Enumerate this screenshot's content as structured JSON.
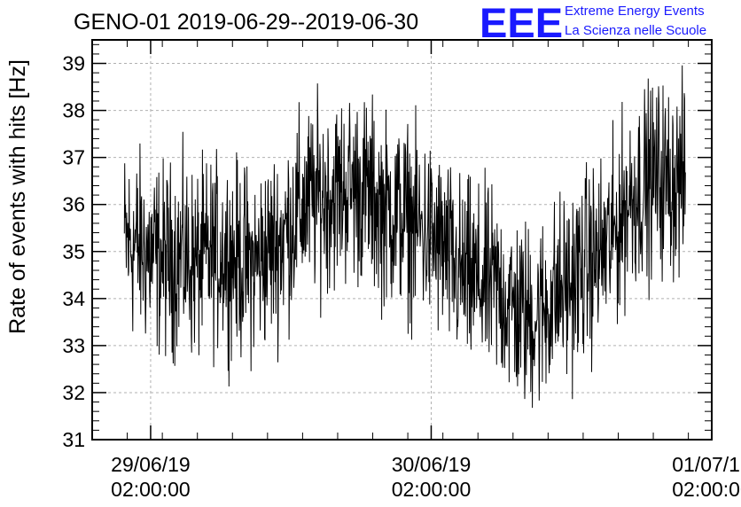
{
  "chart_data": {
    "type": "line",
    "title": "GENO-01 2019-06-29--2019-06-30",
    "ylabel": "Rate of events with hits [Hz]",
    "xlabel": "",
    "ylim": [
      31,
      39.5
    ],
    "yticks": [
      "31",
      "32",
      "33",
      "34",
      "35",
      "36",
      "37",
      "38",
      "39"
    ],
    "xlim": [
      "2019-06-28 21:00",
      "2019-07-01 02:00"
    ],
    "xticks": [
      {
        "date": "29/06/19",
        "time": "02:00:00"
      },
      {
        "date": "30/06/19",
        "time": "02:00:00"
      },
      {
        "date": "01/07/19",
        "time": "02:00:00"
      }
    ],
    "grid": true,
    "series": [
      {
        "color": "#000000",
        "x_start": "2019-06-28 23:45",
        "x_end": "2019-06-30 23:45",
        "trend": [
          35.2,
          35.1,
          34.9,
          34.8,
          34.9,
          34.7,
          34.9,
          35.0,
          34.8,
          34.7,
          35.0,
          35.3,
          35.8,
          36.1,
          36.2,
          36.3,
          36.4,
          36.2,
          35.9,
          35.8,
          35.6,
          35.4,
          35.1,
          34.6,
          34.4,
          34.3,
          34.2,
          33.8,
          33.6,
          33.7,
          34.1,
          34.3,
          34.7,
          34.9,
          35.3,
          36.1,
          36.4,
          36.6,
          36.5,
          36.5
        ],
        "noise_amplitude": 1.1
      }
    ]
  },
  "logo": {
    "mark": "EEE",
    "line1": "Extreme Energy Events",
    "line2": "La Scienza nelle Scuole"
  }
}
